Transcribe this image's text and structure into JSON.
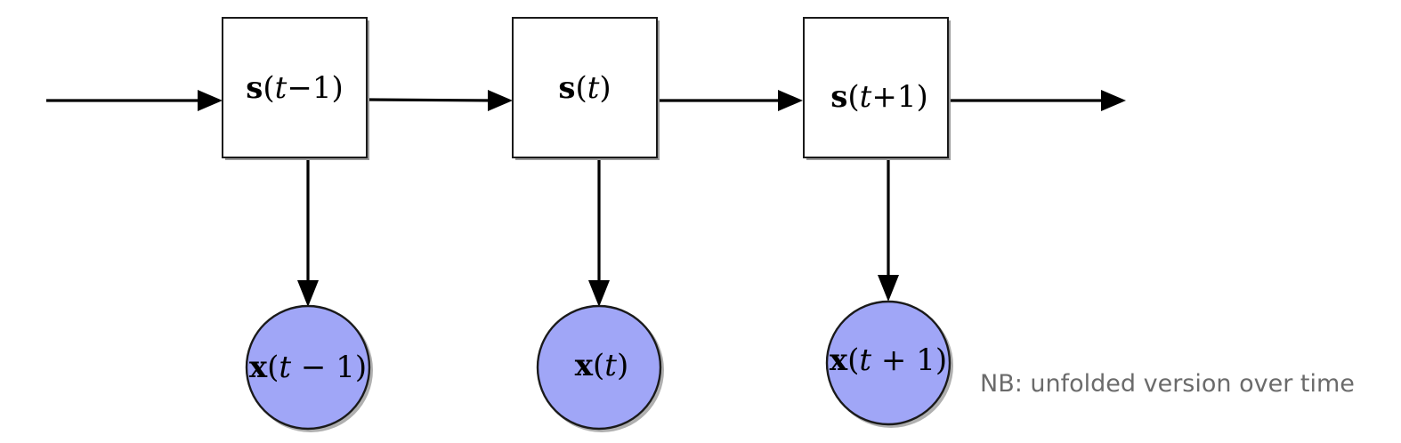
{
  "diagram": {
    "states": [
      {
        "name": "s",
        "index_var": "t",
        "op": "−",
        "offset": "1"
      },
      {
        "name": "s",
        "index_var": "t",
        "op": "",
        "offset": ""
      },
      {
        "name": "s",
        "index_var": "t",
        "op": "+",
        "offset": "1"
      }
    ],
    "observations": [
      {
        "name": "x",
        "index_var": "t",
        "op": "−",
        "offset": "1"
      },
      {
        "name": "x",
        "index_var": "t",
        "op": "",
        "offset": ""
      },
      {
        "name": "x",
        "index_var": "t",
        "op": "+",
        "offset": "1"
      }
    ],
    "colors": {
      "observation_fill": "#a0a6f7",
      "note_text": "#6b6b6b"
    },
    "note": "NB: unfolded version over time"
  }
}
